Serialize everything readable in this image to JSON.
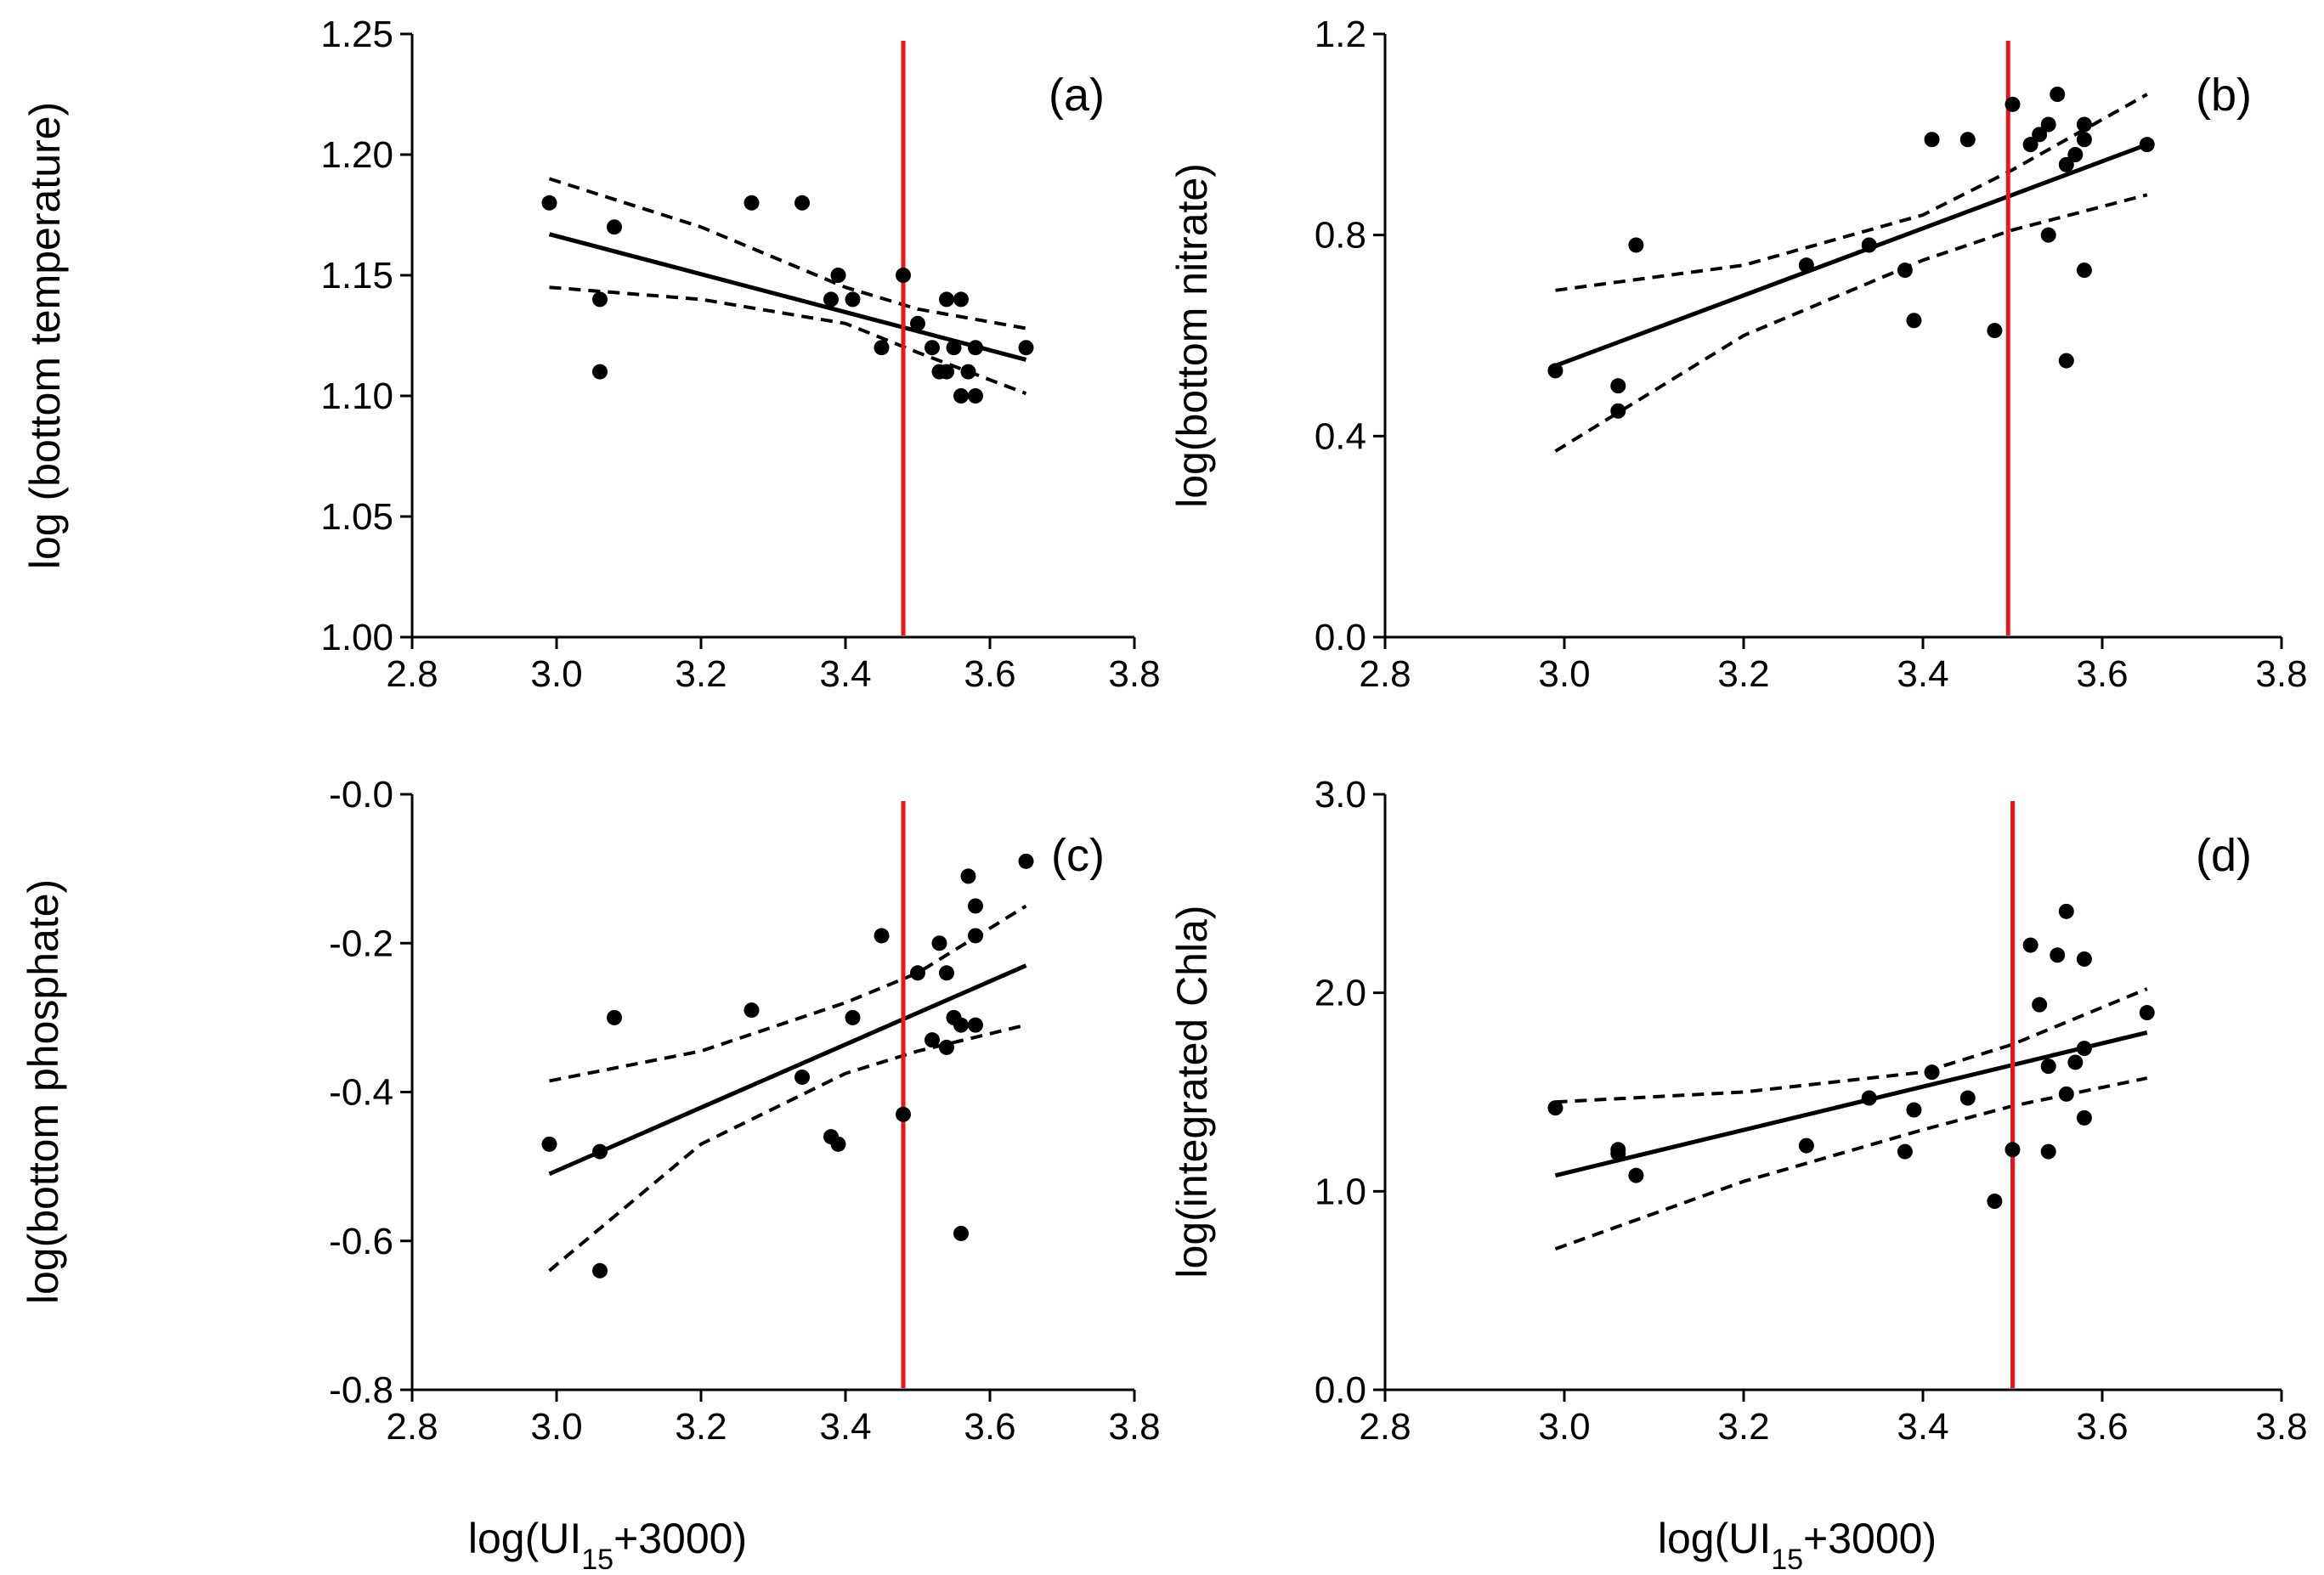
{
  "chart_data": [
    {
      "type": "scatter",
      "panel_label": "(a)",
      "ylabel": "log (bottom temperature)",
      "xlabel": "",
      "xlim": [
        2.8,
        3.8
      ],
      "ylim": [
        1.0,
        1.25
      ],
      "xticks": [
        2.8,
        3.0,
        3.2,
        3.4,
        3.6,
        3.8
      ],
      "xtick_labels": [
        "2.8",
        "3.0",
        "3.2",
        "3.4",
        "3.6",
        "3.8"
      ],
      "yticks": [
        1.0,
        1.05,
        1.1,
        1.15,
        1.2,
        1.25
      ],
      "ytick_labels": [
        "1.00",
        "1.05",
        "1.10",
        "1.15",
        "1.20",
        "1.25"
      ],
      "points": [
        [
          2.99,
          1.18
        ],
        [
          3.06,
          1.14
        ],
        [
          3.06,
          1.11
        ],
        [
          3.08,
          1.17
        ],
        [
          3.27,
          1.18
        ],
        [
          3.34,
          1.18
        ],
        [
          3.38,
          1.14
        ],
        [
          3.39,
          1.15
        ],
        [
          3.41,
          1.14
        ],
        [
          3.45,
          1.12
        ],
        [
          3.48,
          1.15
        ],
        [
          3.5,
          1.13
        ],
        [
          3.52,
          1.12
        ],
        [
          3.53,
          1.11
        ],
        [
          3.54,
          1.11
        ],
        [
          3.54,
          1.14
        ],
        [
          3.55,
          1.12
        ],
        [
          3.56,
          1.14
        ],
        [
          3.56,
          1.1
        ],
        [
          3.57,
          1.11
        ],
        [
          3.58,
          1.1
        ],
        [
          3.58,
          1.12
        ],
        [
          3.65,
          1.12
        ]
      ],
      "fit_line": [
        [
          2.99,
          1.167
        ],
        [
          3.65,
          1.115
        ]
      ],
      "ci_upper": [
        [
          2.99,
          1.19
        ],
        [
          3.2,
          1.17
        ],
        [
          3.4,
          1.145
        ],
        [
          3.5,
          1.136
        ],
        [
          3.65,
          1.128
        ]
      ],
      "ci_lower": [
        [
          2.99,
          1.145
        ],
        [
          3.2,
          1.14
        ],
        [
          3.4,
          1.13
        ],
        [
          3.5,
          1.118
        ],
        [
          3.65,
          1.101
        ]
      ],
      "vline_x": 3.48,
      "vline_color": "#e8161a"
    },
    {
      "type": "scatter",
      "panel_label": "(b)",
      "ylabel": "log(bottom nitrate)",
      "xlabel": "",
      "xlim": [
        2.8,
        3.8
      ],
      "ylim": [
        0.0,
        1.2
      ],
      "xticks": [
        2.8,
        3.0,
        3.2,
        3.4,
        3.6,
        3.8
      ],
      "xtick_labels": [
        "2.8",
        "3.0",
        "3.2",
        "3.4",
        "3.6",
        "3.8"
      ],
      "yticks": [
        0.0,
        0.4,
        0.8,
        1.2
      ],
      "ytick_labels": [
        "0.0",
        "0.4",
        "0.8",
        "1.2"
      ],
      "points": [
        [
          2.99,
          0.53
        ],
        [
          3.06,
          0.5
        ],
        [
          3.06,
          0.45
        ],
        [
          3.08,
          0.78
        ],
        [
          3.27,
          0.74
        ],
        [
          3.34,
          0.78
        ],
        [
          3.38,
          0.73
        ],
        [
          3.39,
          0.63
        ],
        [
          3.41,
          0.99
        ],
        [
          3.45,
          0.99
        ],
        [
          3.48,
          0.61
        ],
        [
          3.5,
          1.06
        ],
        [
          3.52,
          0.98
        ],
        [
          3.53,
          1.0
        ],
        [
          3.54,
          1.02
        ],
        [
          3.54,
          0.8
        ],
        [
          3.55,
          1.08
        ],
        [
          3.56,
          0.94
        ],
        [
          3.56,
          0.55
        ],
        [
          3.57,
          0.96
        ],
        [
          3.58,
          0.99
        ],
        [
          3.58,
          1.02
        ],
        [
          3.58,
          0.73
        ],
        [
          3.65,
          0.98
        ]
      ],
      "fit_line": [
        [
          2.99,
          0.54
        ],
        [
          3.65,
          0.98
        ]
      ],
      "ci_upper": [
        [
          2.99,
          0.69
        ],
        [
          3.2,
          0.74
        ],
        [
          3.4,
          0.84
        ],
        [
          3.5,
          0.93
        ],
        [
          3.65,
          1.08
        ]
      ],
      "ci_lower": [
        [
          2.99,
          0.37
        ],
        [
          3.2,
          0.6
        ],
        [
          3.4,
          0.75
        ],
        [
          3.5,
          0.81
        ],
        [
          3.65,
          0.88
        ]
      ],
      "vline_x": 3.495,
      "vline_color": "#e8161a"
    },
    {
      "type": "scatter",
      "panel_label": "(c)",
      "ylabel": "log(bottom phosphate)",
      "xlabel": "log(UI15+3000)",
      "xlim": [
        2.8,
        3.8
      ],
      "ylim": [
        -0.8,
        0.0
      ],
      "xticks": [
        2.8,
        3.0,
        3.2,
        3.4,
        3.6,
        3.8
      ],
      "xtick_labels": [
        "2.8",
        "3.0",
        "3.2",
        "3.4",
        "3.6",
        "3.8"
      ],
      "yticks": [
        -0.8,
        -0.6,
        -0.4,
        -0.2,
        0.0
      ],
      "ytick_labels": [
        "-0.8",
        "-0.6",
        "-0.4",
        "-0.2",
        "-0.0"
      ],
      "points": [
        [
          2.99,
          -0.47
        ],
        [
          3.06,
          -0.48
        ],
        [
          3.06,
          -0.64
        ],
        [
          3.08,
          -0.3
        ],
        [
          3.27,
          -0.29
        ],
        [
          3.34,
          -0.38
        ],
        [
          3.38,
          -0.46
        ],
        [
          3.39,
          -0.47
        ],
        [
          3.41,
          -0.3
        ],
        [
          3.45,
          -0.19
        ],
        [
          3.48,
          -0.43
        ],
        [
          3.5,
          -0.24
        ],
        [
          3.52,
          -0.33
        ],
        [
          3.53,
          -0.2
        ],
        [
          3.54,
          -0.34
        ],
        [
          3.54,
          -0.24
        ],
        [
          3.55,
          -0.3
        ],
        [
          3.56,
          -0.31
        ],
        [
          3.56,
          -0.59
        ],
        [
          3.57,
          -0.11
        ],
        [
          3.58,
          -0.15
        ],
        [
          3.58,
          -0.19
        ],
        [
          3.58,
          -0.31
        ],
        [
          3.65,
          -0.09
        ]
      ],
      "fit_line": [
        [
          2.99,
          -0.51
        ],
        [
          3.65,
          -0.23
        ]
      ],
      "ci_upper": [
        [
          2.99,
          -0.385
        ],
        [
          3.2,
          -0.345
        ],
        [
          3.4,
          -0.28
        ],
        [
          3.5,
          -0.24
        ],
        [
          3.65,
          -0.15
        ]
      ],
      "ci_lower": [
        [
          2.99,
          -0.64
        ],
        [
          3.2,
          -0.47
        ],
        [
          3.4,
          -0.375
        ],
        [
          3.5,
          -0.345
        ],
        [
          3.65,
          -0.31
        ]
      ],
      "vline_x": 3.48,
      "vline_color": "#e8161a"
    },
    {
      "type": "scatter",
      "panel_label": "(d)",
      "ylabel": "log(integrated Chla)",
      "xlabel": "log(UI15+3000)",
      "xlim": [
        2.8,
        3.8
      ],
      "ylim": [
        0.0,
        3.0
      ],
      "xticks": [
        2.8,
        3.0,
        3.2,
        3.4,
        3.6,
        3.8
      ],
      "xtick_labels": [
        "2.8",
        "3.0",
        "3.2",
        "3.4",
        "3.6",
        "3.8"
      ],
      "yticks": [
        0.0,
        1.0,
        2.0,
        3.0
      ],
      "ytick_labels": [
        "0.0",
        "1.0",
        "2.0",
        "3.0"
      ],
      "points": [
        [
          2.99,
          1.42
        ],
        [
          3.06,
          1.21
        ],
        [
          3.06,
          1.19
        ],
        [
          3.08,
          1.08
        ],
        [
          3.27,
          1.23
        ],
        [
          3.34,
          1.47
        ],
        [
          3.38,
          1.2
        ],
        [
          3.39,
          1.41
        ],
        [
          3.41,
          1.6
        ],
        [
          3.45,
          1.47
        ],
        [
          3.48,
          0.95
        ],
        [
          3.5,
          1.21
        ],
        [
          3.52,
          2.24
        ],
        [
          3.53,
          1.94
        ],
        [
          3.54,
          1.63
        ],
        [
          3.54,
          1.2
        ],
        [
          3.55,
          2.19
        ],
        [
          3.56,
          2.41
        ],
        [
          3.56,
          1.49
        ],
        [
          3.57,
          1.65
        ],
        [
          3.58,
          1.72
        ],
        [
          3.58,
          1.37
        ],
        [
          3.58,
          2.17
        ],
        [
          3.65,
          1.9
        ]
      ],
      "fit_line": [
        [
          2.99,
          1.08
        ],
        [
          3.65,
          1.8
        ]
      ],
      "ci_upper": [
        [
          2.99,
          1.45
        ],
        [
          3.2,
          1.5
        ],
        [
          3.4,
          1.6
        ],
        [
          3.5,
          1.74
        ],
        [
          3.65,
          2.02
        ]
      ],
      "ci_lower": [
        [
          2.99,
          0.71
        ],
        [
          3.2,
          1.05
        ],
        [
          3.4,
          1.31
        ],
        [
          3.5,
          1.43
        ],
        [
          3.65,
          1.57
        ]
      ],
      "vline_x": 3.5,
      "vline_color": "#e8161a"
    }
  ],
  "xaxis_title": {
    "prefix": "log(UI",
    "subscript": "15",
    "suffix": "+3000)"
  }
}
